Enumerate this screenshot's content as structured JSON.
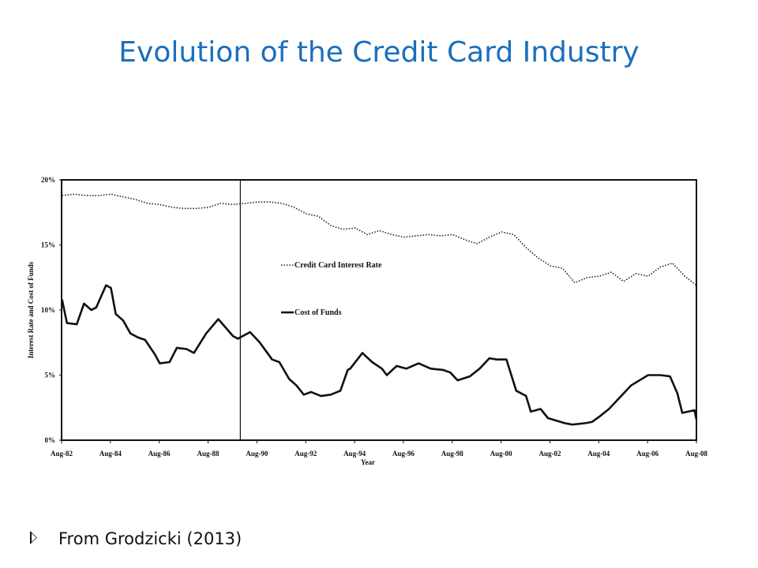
{
  "chart_data": {
    "type": "line",
    "title": "Evolution of the Credit Card Industry",
    "x_label": "Year",
    "y_label": "Interest Rate and Cost of Funds",
    "note": "From Grodzicki (2013)",
    "xlim": [
      1982.58,
      2008.58
    ],
    "xticks": [
      {
        "value": 1982.58,
        "label": "Aug-82"
      },
      {
        "value": 1984.58,
        "label": "Aug-84"
      },
      {
        "value": 1986.58,
        "label": "Aug-86"
      },
      {
        "value": 1988.58,
        "label": "Aug-88"
      },
      {
        "value": 1990.58,
        "label": "Aug-90"
      },
      {
        "value": 1992.58,
        "label": "Aug-92"
      },
      {
        "value": 1994.58,
        "label": "Aug-94"
      },
      {
        "value": 1996.58,
        "label": "Aug-96"
      },
      {
        "value": 1998.58,
        "label": "Aug-98"
      },
      {
        "value": 2000.58,
        "label": "Aug-00"
      },
      {
        "value": 2002.58,
        "label": "Aug-02"
      },
      {
        "value": 2004.58,
        "label": "Aug-04"
      },
      {
        "value": 2006.58,
        "label": "Aug-06"
      },
      {
        "value": 2008.58,
        "label": "Aug-08"
      }
    ],
    "ylim": [
      0,
      20
    ],
    "yticks": [
      {
        "value": 0,
        "label": "0%"
      },
      {
        "value": 5,
        "label": "5%"
      },
      {
        "value": 10,
        "label": "10%"
      },
      {
        "value": 15,
        "label": "15%"
      },
      {
        "value": 20,
        "label": "20%"
      }
    ],
    "vline": 1989.9,
    "series": [
      {
        "name": "Credit Card Interest Rate",
        "color": "#222222",
        "dash": "dotted",
        "x": [
          1982.6,
          1983.1,
          1983.6,
          1984.1,
          1984.6,
          1985.1,
          1985.6,
          1986.1,
          1986.6,
          1987.1,
          1987.6,
          1988.1,
          1988.6,
          1989.1,
          1989.6,
          1990.1,
          1990.6,
          1991.1,
          1991.6,
          1992.1,
          1992.6,
          1993.1,
          1993.6,
          1994.1,
          1994.6,
          1995.1,
          1995.6,
          1996.1,
          1996.6,
          1997.1,
          1997.6,
          1998.1,
          1998.6,
          1999.1,
          1999.6,
          2000.1,
          2000.6,
          2001.1,
          2001.6,
          2002.1,
          2002.6,
          2003.1,
          2003.6,
          2004.1,
          2004.6,
          2005.1,
          2005.6,
          2006.1,
          2006.6,
          2007.1,
          2007.6,
          2008.1,
          2008.58
        ],
        "values": [
          18.8,
          18.9,
          18.8,
          18.8,
          18.9,
          18.7,
          18.5,
          18.2,
          18.1,
          17.9,
          17.8,
          17.8,
          17.9,
          18.2,
          18.1,
          18.2,
          18.3,
          18.3,
          18.2,
          17.9,
          17.4,
          17.2,
          16.5,
          16.2,
          16.3,
          15.8,
          16.1,
          15.8,
          15.6,
          15.7,
          15.8,
          15.7,
          15.8,
          15.4,
          15.1,
          15.6,
          16.0,
          15.8,
          14.8,
          14.0,
          13.4,
          13.2,
          12.1,
          12.5,
          12.6,
          12.9,
          12.2,
          12.8,
          12.6,
          13.3,
          13.6,
          12.6,
          11.9
        ]
      },
      {
        "name": "Cost of Funds",
        "color": "#111111",
        "dash": "solid",
        "x": [
          1982.6,
          1982.8,
          1983.2,
          1983.5,
          1983.8,
          1984.0,
          1984.4,
          1984.6,
          1984.8,
          1985.1,
          1985.4,
          1985.7,
          1986.0,
          1986.4,
          1986.6,
          1987.0,
          1987.3,
          1987.7,
          1988.0,
          1988.5,
          1989.0,
          1989.6,
          1989.8,
          1990.3,
          1990.7,
          1991.2,
          1991.5,
          1991.9,
          1992.2,
          1992.5,
          1992.8,
          1993.2,
          1993.6,
          1994.0,
          1994.3,
          1994.4,
          1994.9,
          1995.3,
          1995.7,
          1995.9,
          1996.3,
          1996.7,
          1997.2,
          1997.7,
          1998.2,
          1998.5,
          1998.8,
          1999.3,
          1999.7,
          2000.1,
          2000.4,
          2000.8,
          2000.9,
          2001.2,
          2001.6,
          2001.8,
          2002.2,
          2002.5,
          2003.2,
          2003.5,
          2004.0,
          2004.3,
          2004.6,
          2005.0,
          2005.4,
          2005.9,
          2006.6,
          2007.1,
          2007.5,
          2007.8,
          2008.0,
          2008.5,
          2008.58
        ],
        "values": [
          10.8,
          9.0,
          8.9,
          10.5,
          10.0,
          10.2,
          11.9,
          11.7,
          9.7,
          9.2,
          8.2,
          7.9,
          7.7,
          6.6,
          5.9,
          6.0,
          7.1,
          7.0,
          6.7,
          8.2,
          9.3,
          8.0,
          7.8,
          8.3,
          7.5,
          6.2,
          6.0,
          4.7,
          4.2,
          3.5,
          3.7,
          3.4,
          3.5,
          3.8,
          5.4,
          5.5,
          6.7,
          6.0,
          5.5,
          5.0,
          5.7,
          5.5,
          5.9,
          5.5,
          5.4,
          5.2,
          4.6,
          4.9,
          5.5,
          6.3,
          6.2,
          6.2,
          5.6,
          3.8,
          3.4,
          2.2,
          2.4,
          1.7,
          1.3,
          1.2,
          1.3,
          1.4,
          1.8,
          2.4,
          3.2,
          4.2,
          5.0,
          5.0,
          4.9,
          3.6,
          2.1,
          2.3,
          1.6
        ]
      }
    ]
  }
}
